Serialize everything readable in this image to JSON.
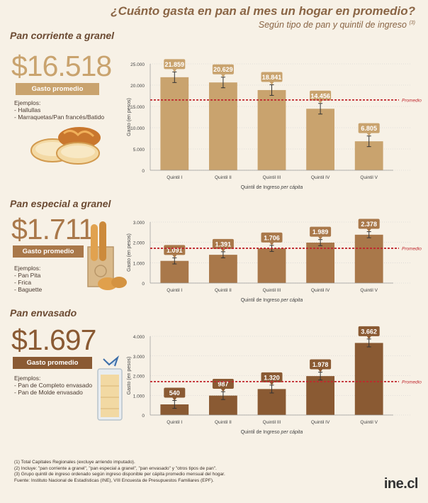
{
  "header": {
    "title": "¿Cuánto gasta en pan al mes un hogar en promedio?",
    "subtitle": "Según tipo de pan y quintil de ingreso",
    "subtitle_note": "(3)"
  },
  "sections": [
    {
      "title": "Pan corriente a granel",
      "amount": "$16.518",
      "badge": "Gasto promedio",
      "examples_label": "Ejemplos:",
      "examples": [
        "- Hallullas",
        "- Marraquetas/Pan francés/Batido"
      ]
    },
    {
      "title": "Pan especial a granel",
      "amount": "$1.711",
      "badge": "Gasto promedio",
      "examples_label": "Ejemplos:",
      "examples": [
        "- Pan Pita",
        "- Frica",
        "- Baguette"
      ]
    },
    {
      "title": "Pan envasado",
      "amount": "$1.697",
      "badge": "Gasto promedio",
      "examples_label": "Ejemplos:",
      "examples": [
        "- Pan de Completo envasado",
        "- Pan de Molde envasado"
      ]
    }
  ],
  "chart_data": [
    {
      "type": "bar",
      "categories": [
        "Quintil I",
        "Quintil II",
        "Quintil III",
        "Quintil IV",
        "Quintil V"
      ],
      "values": [
        21859,
        20629,
        18841,
        14456,
        6805
      ],
      "value_labels": [
        "21.859",
        "20.629",
        "18.841",
        "14.456",
        "6.805"
      ],
      "ylim": [
        0,
        25000
      ],
      "yticks": [
        0,
        5000,
        10000,
        15000,
        20000,
        25000
      ],
      "ytick_labels": [
        "0",
        "5.000",
        "10.000",
        "15.000",
        "20.000",
        "25.000"
      ],
      "ylabel": "Gasto (en pesos)",
      "xlabel": "Quintil de Ingreso",
      "xlabel_italic": "per cápita",
      "reference_line": {
        "value": 16518,
        "label": "Promedio"
      },
      "bar_color": "#c9a36e",
      "error_bar": true
    },
    {
      "type": "bar",
      "categories": [
        "Quintil I",
        "Quintil II",
        "Quintil III",
        "Quintil IV",
        "Quintil V"
      ],
      "values": [
        1091,
        1391,
        1706,
        1989,
        2378
      ],
      "value_labels": [
        "1.091",
        "1.391",
        "1.706",
        "1.989",
        "2.378"
      ],
      "ylim": [
        0,
        3000
      ],
      "yticks": [
        0,
        1000,
        2000,
        3000
      ],
      "ytick_labels": [
        "0",
        "1.000",
        "2.000",
        "3.000"
      ],
      "ylabel": "Gasto (en pesos)",
      "xlabel": "Quintil de Ingreso",
      "xlabel_italic": "per cápita",
      "reference_line": {
        "value": 1711,
        "label": "Promedio"
      },
      "bar_color": "#a9784a",
      "error_bar": true
    },
    {
      "type": "bar",
      "categories": [
        "Quintil I",
        "Quintil II",
        "Quintil III",
        "Quintil IV",
        "Quintil V"
      ],
      "values": [
        540,
        987,
        1320,
        1978,
        3662
      ],
      "value_labels": [
        "540",
        "987",
        "1.320",
        "1.978",
        "3.662"
      ],
      "ylim": [
        0,
        4000
      ],
      "yticks": [
        0,
        1000,
        2000,
        3000,
        4000
      ],
      "ytick_labels": [
        "0",
        "1.000",
        "2.000",
        "3.000",
        "4.000"
      ],
      "ylabel": "Gasto (en pesos)",
      "xlabel": "Quintil de Ingreso",
      "xlabel_italic": "per cápita",
      "reference_line": {
        "value": 1697,
        "label": "Promedio"
      },
      "bar_color": "#8a5a33",
      "error_bar": true
    }
  ],
  "footnotes": [
    "(1) Total Capitales Regionales (excluye arriendo imputado).",
    "(2) Incluye: \"pan corriente a granel\", \"pan especial a granel\", \"pan envasado\" y \"otros tipos de pan\".",
    "(3) Grupo quintil de ingreso ordenado según ingreso disponible per cápita promedio mensual del hogar.",
    "Fuente: Instituto Nacional de Estadísticas (INE), VIII Encuesta de Presupuestos Familiares (EPF)."
  ],
  "logo": "ine.cl",
  "colors": {
    "section1": "#c9a36e",
    "section2": "#a9784a",
    "section3": "#8a5a33",
    "average_line": "#c0272d"
  }
}
